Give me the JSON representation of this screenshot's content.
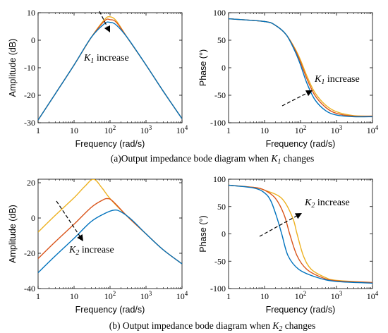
{
  "chart_data": [
    {
      "type": "line",
      "xlabel": "Frequency (rad/s)",
      "ylabel": "Amplitude (dB)",
      "xscale": "log",
      "xlim": [
        1,
        10000
      ],
      "ylim": [
        -30,
        10
      ],
      "xticks": [
        "1",
        "10",
        "10²",
        "10³",
        "10⁴"
      ],
      "yticks": [
        "10",
        "0",
        "-10",
        "-20",
        "-30"
      ],
      "annotation": {
        "symbol": "K",
        "sub": "1",
        "text": " increase"
      },
      "series": [
        {
          "color": "#EDB120",
          "points": [
            [
              1,
              -29
            ],
            [
              3,
              -19.5
            ],
            [
              10,
              -9
            ],
            [
              30,
              1
            ],
            [
              70,
              7.5
            ],
            [
              100,
              8.5
            ],
            [
              150,
              7
            ],
            [
              300,
              1
            ],
            [
              1000,
              -9
            ],
            [
              3000,
              -18.5
            ],
            [
              10000,
              -28.5
            ]
          ]
        },
        {
          "color": "#D95319",
          "points": [
            [
              1,
              -29
            ],
            [
              3,
              -19.5
            ],
            [
              10,
              -9
            ],
            [
              30,
              1
            ],
            [
              70,
              7
            ],
            [
              100,
              7.5
            ],
            [
              150,
              6.5
            ],
            [
              300,
              1
            ],
            [
              1000,
              -9
            ],
            [
              3000,
              -18.5
            ],
            [
              10000,
              -28.5
            ]
          ]
        },
        {
          "color": "#0072BD",
          "points": [
            [
              1,
              -29
            ],
            [
              3,
              -19.5
            ],
            [
              10,
              -9
            ],
            [
              30,
              1
            ],
            [
              70,
              6
            ],
            [
              100,
              6.5
            ],
            [
              150,
              5.5
            ],
            [
              300,
              1
            ],
            [
              1000,
              -9
            ],
            [
              3000,
              -18.5
            ],
            [
              10000,
              -28.5
            ]
          ]
        }
      ]
    },
    {
      "type": "line",
      "xlabel": "Frequency (rad/s)",
      "ylabel": "Phase (°)",
      "xscale": "log",
      "xlim": [
        1,
        10000
      ],
      "ylim": [
        -100,
        100
      ],
      "xticks": [
        "1",
        "10",
        "10²",
        "10³",
        "10⁴"
      ],
      "yticks": [
        "100",
        "50",
        "0",
        "-50",
        "-100"
      ],
      "annotation": {
        "symbol": "K",
        "sub": "1",
        "text": " increase"
      },
      "series": [
        {
          "color": "#EDB120",
          "points": [
            [
              1,
              89
            ],
            [
              10,
              84
            ],
            [
              20,
              77
            ],
            [
              40,
              60
            ],
            [
              70,
              35
            ],
            [
              100,
              14
            ],
            [
              150,
              -15
            ],
            [
              250,
              -45
            ],
            [
              500,
              -68
            ],
            [
              1000,
              -80
            ],
            [
              3000,
              -87
            ],
            [
              10000,
              -88
            ]
          ]
        },
        {
          "color": "#D95319",
          "points": [
            [
              1,
              89
            ],
            [
              10,
              84
            ],
            [
              20,
              77
            ],
            [
              40,
              60
            ],
            [
              70,
              33
            ],
            [
              100,
              10
            ],
            [
              150,
              -20
            ],
            [
              250,
              -50
            ],
            [
              500,
              -72
            ],
            [
              1000,
              -83
            ],
            [
              3000,
              -88
            ],
            [
              10000,
              -88
            ]
          ]
        },
        {
          "color": "#0072BD",
          "points": [
            [
              1,
              89
            ],
            [
              10,
              84
            ],
            [
              20,
              77
            ],
            [
              40,
              60
            ],
            [
              70,
              30
            ],
            [
              100,
              5
            ],
            [
              150,
              -28
            ],
            [
              250,
              -58
            ],
            [
              500,
              -78
            ],
            [
              1000,
              -86
            ],
            [
              3000,
              -89
            ],
            [
              10000,
              -89
            ]
          ]
        }
      ]
    },
    {
      "type": "line",
      "xlabel": "Frequency (rad/s)",
      "ylabel": "Amplitude (dB)",
      "xscale": "log",
      "xlim": [
        1,
        10000
      ],
      "ylim": [
        -40,
        22
      ],
      "xticks": [
        "1",
        "10",
        "10²",
        "10³",
        "10⁴"
      ],
      "yticks": [
        "20",
        "0",
        "-20",
        "-40"
      ],
      "annotation": {
        "symbol": "K",
        "sub": "2",
        "text": " increase"
      },
      "series": [
        {
          "color": "#EDB120",
          "points": [
            [
              1,
              -8
            ],
            [
              3,
              1.5
            ],
            [
              10,
              11.5
            ],
            [
              20,
              18
            ],
            [
              35,
              22
            ],
            [
              60,
              17
            ],
            [
              100,
              11
            ],
            [
              300,
              1
            ],
            [
              1000,
              -9
            ],
            [
              3000,
              -18
            ],
            [
              10000,
              -26
            ]
          ]
        },
        {
          "color": "#D95319",
          "points": [
            [
              1,
              -23
            ],
            [
              3,
              -13.5
            ],
            [
              10,
              -3.5
            ],
            [
              30,
              6
            ],
            [
              60,
              10
            ],
            [
              85,
              11
            ],
            [
              120,
              9.5
            ],
            [
              300,
              1
            ],
            [
              1000,
              -9
            ],
            [
              3000,
              -18
            ],
            [
              10000,
              -26
            ]
          ]
        },
        {
          "color": "#0072BD",
          "points": [
            [
              1,
              -31
            ],
            [
              3,
              -21.5
            ],
            [
              10,
              -11.5
            ],
            [
              30,
              -2
            ],
            [
              70,
              2.5
            ],
            [
              130,
              4.5
            ],
            [
              200,
              3.5
            ],
            [
              400,
              -1
            ],
            [
              1000,
              -9
            ],
            [
              3000,
              -18
            ],
            [
              10000,
              -26
            ]
          ]
        }
      ]
    },
    {
      "type": "line",
      "xlabel": "Frequency (rad/s)",
      "ylabel": "Phase (°)",
      "xscale": "log",
      "xlim": [
        1,
        10000
      ],
      "ylim": [
        -100,
        100
      ],
      "xticks": [
        "1",
        "10",
        "10²",
        "10³",
        "10⁴"
      ],
      "yticks": [
        "100",
        "50",
        "0",
        "-50",
        "-100"
      ],
      "annotation": {
        "symbol": "K",
        "sub": "2",
        "text": " increase"
      },
      "series": [
        {
          "color": "#EDB120",
          "points": [
            [
              1,
              89
            ],
            [
              5,
              85
            ],
            [
              10,
              80
            ],
            [
              30,
              65
            ],
            [
              60,
              30
            ],
            [
              80,
              0
            ],
            [
              120,
              -40
            ],
            [
              200,
              -65
            ],
            [
              500,
              -80
            ],
            [
              1000,
              -85
            ],
            [
              10000,
              -89
            ]
          ]
        },
        {
          "color": "#D95319",
          "points": [
            [
              1,
              89
            ],
            [
              5,
              85
            ],
            [
              10,
              80
            ],
            [
              20,
              65
            ],
            [
              35,
              35
            ],
            [
              50,
              0
            ],
            [
              80,
              -40
            ],
            [
              150,
              -65
            ],
            [
              400,
              -80
            ],
            [
              1000,
              -86
            ],
            [
              10000,
              -89
            ]
          ]
        },
        {
          "color": "#0072BD",
          "points": [
            [
              1,
              89
            ],
            [
              5,
              84
            ],
            [
              10,
              75
            ],
            [
              15,
              60
            ],
            [
              22,
              30
            ],
            [
              30,
              0
            ],
            [
              45,
              -40
            ],
            [
              90,
              -65
            ],
            [
              300,
              -80
            ],
            [
              1000,
              -87
            ],
            [
              10000,
              -90
            ]
          ]
        }
      ]
    }
  ],
  "captions": {
    "a": {
      "pre": "(a)Output impedance bode diagram when ",
      "sym": "K",
      "sub": "1",
      "post": " changes"
    },
    "b": {
      "pre": "(b) Output impedance bode diagram when ",
      "sym": "K",
      "sub": "2",
      "post": " changes"
    }
  }
}
